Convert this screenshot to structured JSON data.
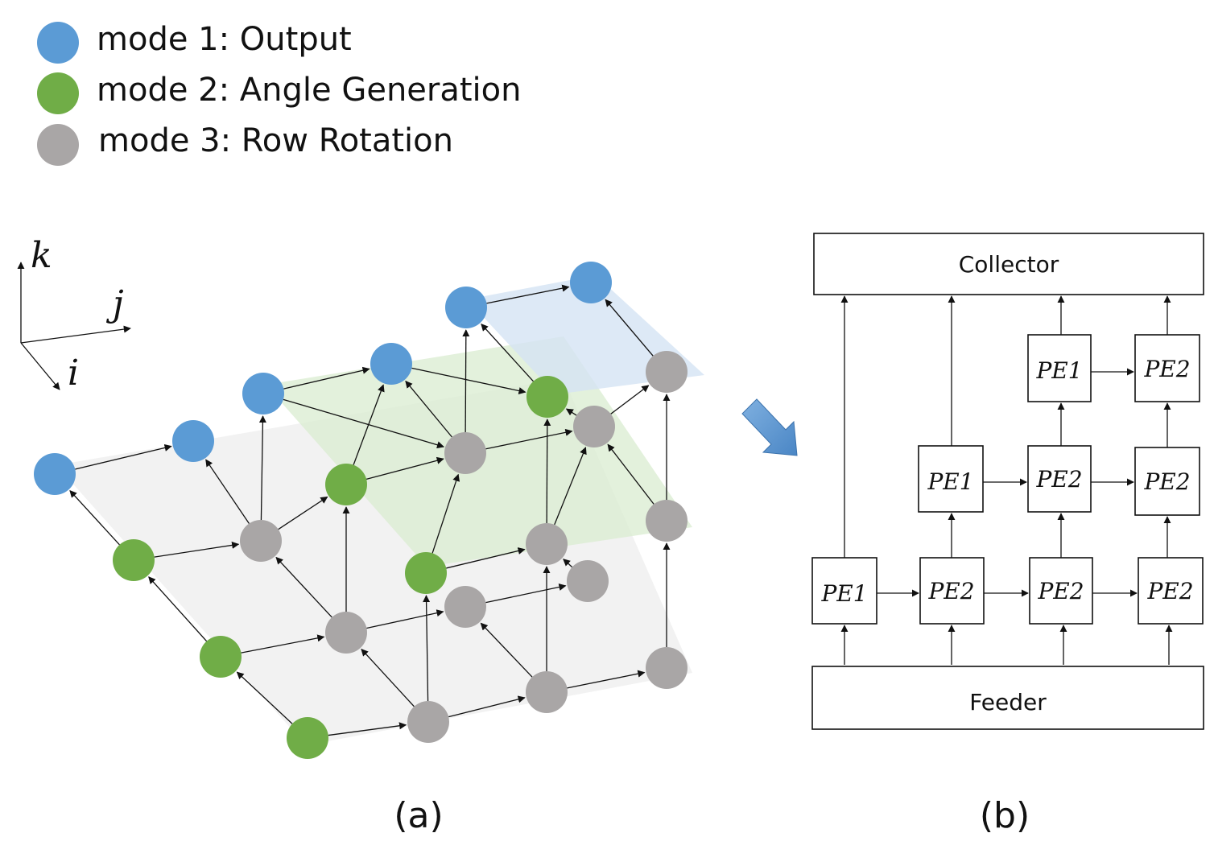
{
  "legend": [
    {
      "label": "mode 1: Output",
      "color": "#5b9bd5"
    },
    {
      "label": "mode 2: Angle Generation",
      "color": "#70ad47"
    },
    {
      "label": "mode 3: Row Rotation",
      "color": "#a9a6a6"
    }
  ],
  "axes": {
    "k": "k",
    "j": "j",
    "i": "i"
  },
  "panel_a_caption": "(a)",
  "panel_b_caption": "(b)",
  "collector_label": "Collector",
  "feeder_label": "Feeder",
  "pe_labels": {
    "row_top": [
      "PE1",
      "PE2"
    ],
    "row_mid": [
      "PE1",
      "PE2",
      "PE2"
    ],
    "row_bot": [
      "PE1",
      "PE2",
      "PE2",
      "PE2"
    ]
  },
  "colors": {
    "output": "#5b9bd5",
    "angle": "#70ad47",
    "rotation": "#a9a6a6",
    "arrow": "#5b9bd5"
  }
}
